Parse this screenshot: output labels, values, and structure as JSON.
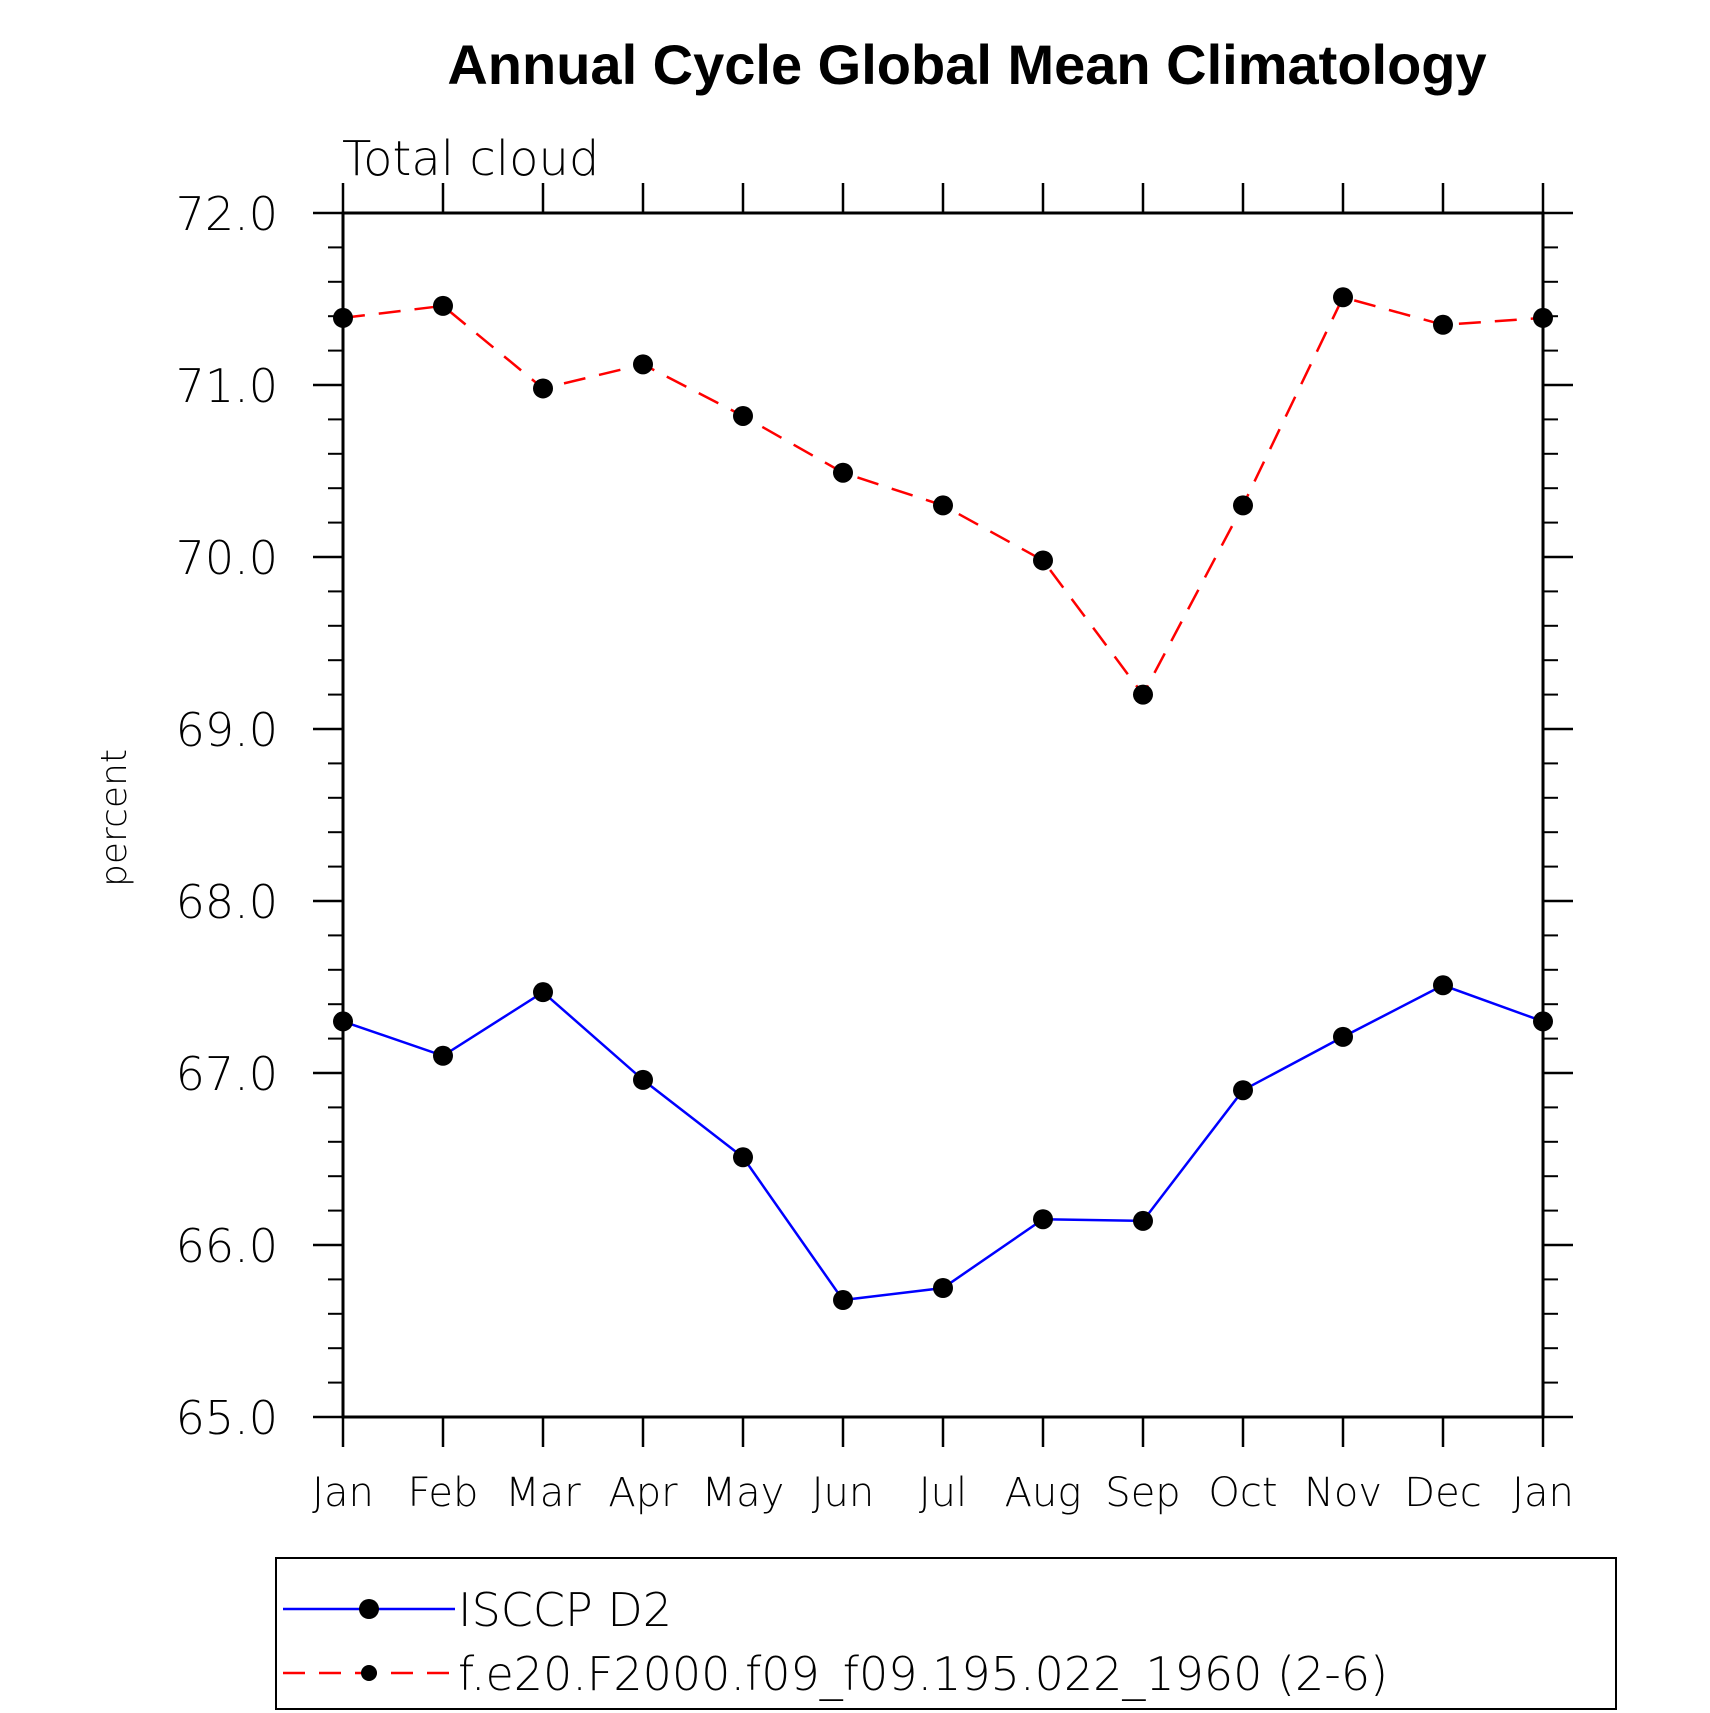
{
  "chart_data": {
    "type": "line",
    "title": "Annual Cycle Global Mean Climatology",
    "subtitle": "Total cloud",
    "xlabel": "",
    "ylabel": "percent",
    "categories": [
      "Jan",
      "Feb",
      "Mar",
      "Apr",
      "May",
      "Jun",
      "Jul",
      "Aug",
      "Sep",
      "Oct",
      "Nov",
      "Dec",
      "Jan"
    ],
    "ylim": [
      65.0,
      72.0
    ],
    "yticks": [
      "65.0",
      "66.0",
      "67.0",
      "68.0",
      "69.0",
      "70.0",
      "71.0",
      "72.0"
    ],
    "grid": false,
    "legend_position": "bottom",
    "series": [
      {
        "name": "ISCCP D2",
        "color": "#0000ff",
        "line_style": "solid",
        "marker": "filled-circle",
        "values": [
          67.3,
          67.1,
          67.47,
          66.96,
          66.51,
          65.68,
          65.75,
          66.15,
          66.14,
          66.9,
          67.21,
          67.51,
          67.3
        ]
      },
      {
        "name": "f.e20.F2000.f09_f09.195.022_1960 (2-6)",
        "color": "#ff0000",
        "line_style": "dashed",
        "marker": "filled-circle",
        "values": [
          71.39,
          71.46,
          70.98,
          71.12,
          70.82,
          70.49,
          70.3,
          69.98,
          69.2,
          70.3,
          71.51,
          71.35,
          71.39
        ]
      }
    ]
  }
}
